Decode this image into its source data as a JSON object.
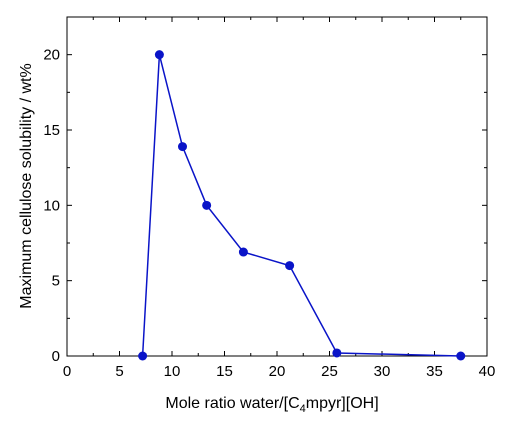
{
  "chart_data": {
    "type": "line",
    "title": "",
    "xlabel_parts": [
      "Mole ratio water/[C",
      "4",
      "mpyr][OH]"
    ],
    "ylabel": "Maximum cellulose solubility / wt%",
    "xlim": [
      0,
      40
    ],
    "ylim": [
      0,
      22.5
    ],
    "xticks": [
      0,
      5,
      10,
      15,
      20,
      25,
      30,
      35,
      40
    ],
    "yticks": [
      0,
      5,
      10,
      15,
      20
    ],
    "xtick_labels": [
      "0",
      "5",
      "10",
      "15",
      "20",
      "25",
      "30",
      "35",
      "40"
    ],
    "ytick_labels": [
      "0",
      "5",
      "10",
      "15",
      "20"
    ],
    "grid": false,
    "series": [
      {
        "x": [
          7.2,
          8.8,
          11.0,
          13.3,
          16.8,
          21.2,
          25.7,
          37.5
        ],
        "y": [
          0,
          20.0,
          13.9,
          10.0,
          6.9,
          6.0,
          0.2,
          0
        ],
        "color": "#0a14c8",
        "marker": "circle"
      }
    ]
  }
}
